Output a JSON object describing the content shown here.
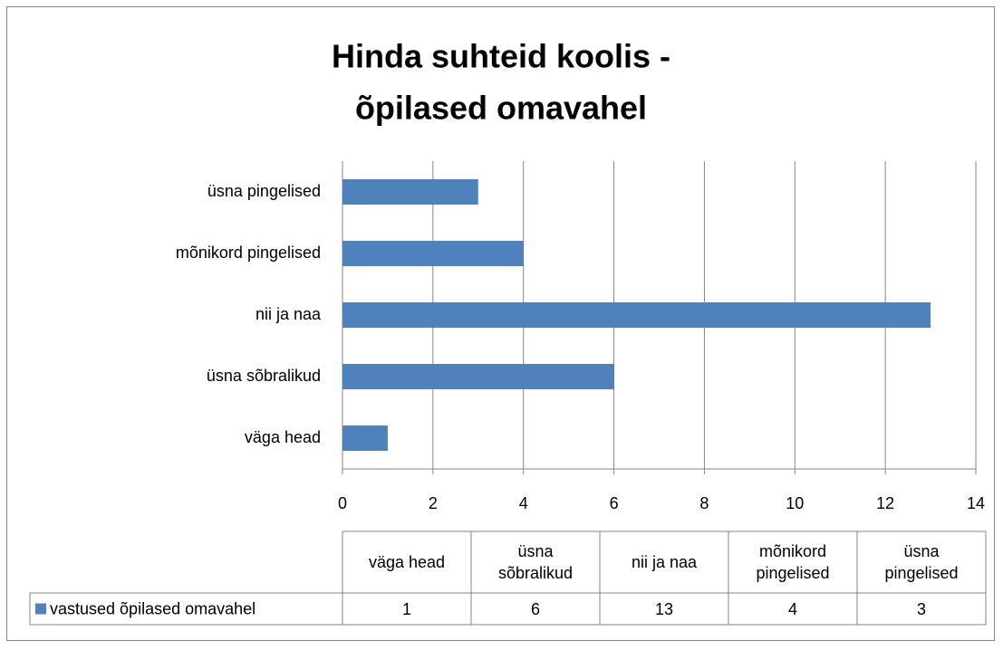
{
  "chart_data": {
    "type": "bar",
    "orientation": "horizontal",
    "title": [
      "Hinda suhteid koolis -",
      "õpilased omavahel"
    ],
    "categories": [
      "väga head",
      "üsna sõbralikud",
      "nii ja naa",
      "mõnikord pingelised",
      "üsna pingelised"
    ],
    "series": [
      {
        "name": "vastused õpilased omavahel",
        "color": "#4f81bd",
        "values": [
          1,
          6,
          13,
          4,
          3
        ]
      }
    ],
    "xlim": [
      0,
      14
    ],
    "xticks": [
      0,
      2,
      4,
      6,
      8,
      10,
      12,
      14
    ],
    "grid": true,
    "data_table": true
  }
}
